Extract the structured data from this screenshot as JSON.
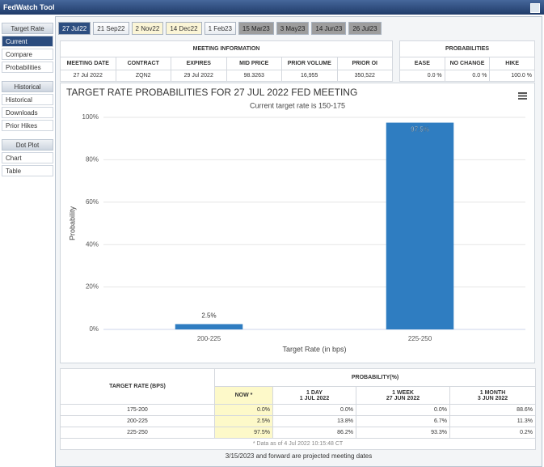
{
  "header": {
    "title": "FedWatch Tool"
  },
  "sidebar": [
    {
      "heading": "Target Rate",
      "items": [
        "Current",
        "Compare",
        "Probabilities"
      ]
    },
    {
      "heading": "Historical",
      "items": [
        "Historical",
        "Downloads",
        "Prior Hikes"
      ]
    },
    {
      "heading": "Dot Plot",
      "items": [
        "Chart",
        "Table"
      ]
    }
  ],
  "tabs": [
    "27 Jul22",
    "21 Sep22",
    "2 Nov22",
    "14 Dec22",
    "1 Feb23",
    "15 Mar23",
    "3 May23",
    "14 Jun23",
    "26 Jul23"
  ],
  "meeting_info": {
    "title": "MEETING INFORMATION",
    "columns": [
      "MEETING DATE",
      "CONTRACT",
      "EXPIRES",
      "MID PRICE",
      "PRIOR VOLUME",
      "PRIOR OI"
    ],
    "row": [
      "27 Jul 2022",
      "ZQN2",
      "29 Jul 2022",
      "98.3263",
      "16,955",
      "350,522"
    ]
  },
  "probabilities": {
    "title": "PROBABILITIES",
    "columns": [
      "EASE",
      "NO CHANGE",
      "HIKE"
    ],
    "row": [
      "0.0 %",
      "0.0 %",
      "100.0 %"
    ]
  },
  "chart_data": {
    "type": "bar",
    "title": "TARGET RATE PROBABILITIES FOR 27 JUL 2022 FED MEETING",
    "subtitle": "Current target rate is 150-175",
    "x_label": "Target Rate (in bps)",
    "y_label": "Probability",
    "categories": [
      "200-225",
      "225-250"
    ],
    "values": [
      2.5,
      97.5
    ],
    "value_labels": [
      "2.5%",
      "97.5%"
    ],
    "color": "#2f7dc1",
    "ylim": [
      0,
      100
    ],
    "yticks": [
      {
        "value": 0,
        "label": "0%"
      },
      {
        "value": 20,
        "label": "20%"
      },
      {
        "value": 40,
        "label": "40%"
      },
      {
        "value": 60,
        "label": "60%"
      },
      {
        "value": 80,
        "label": "80%"
      },
      {
        "value": 100,
        "label": "100%"
      }
    ],
    "grid": true
  },
  "table": {
    "header": "TARGET RATE (BPS)",
    "group": "PROBABILITY(%)",
    "columns": [
      {
        "name": "NOW *"
      },
      {
        "name": "1 DAY",
        "date": "1 JUL 2022"
      },
      {
        "name": "1 WEEK",
        "date": "27 JUN 2022"
      },
      {
        "name": "1 MONTH",
        "date": "3 JUN 2022"
      }
    ],
    "rows": [
      [
        "175-200",
        "0.0%",
        "0.0%",
        "0.0%",
        "88.6%"
      ],
      [
        "200-225",
        "2.5%",
        "13.8%",
        "6.7%",
        "11.3%"
      ],
      [
        "225-250",
        "97.5%",
        "86.2%",
        "93.3%",
        "0.2%"
      ]
    ],
    "footnote": "* Data as of 4 Jul 2022 10:15:48 CT"
  },
  "footer": "3/15/2023 and forward are projected meeting dates"
}
